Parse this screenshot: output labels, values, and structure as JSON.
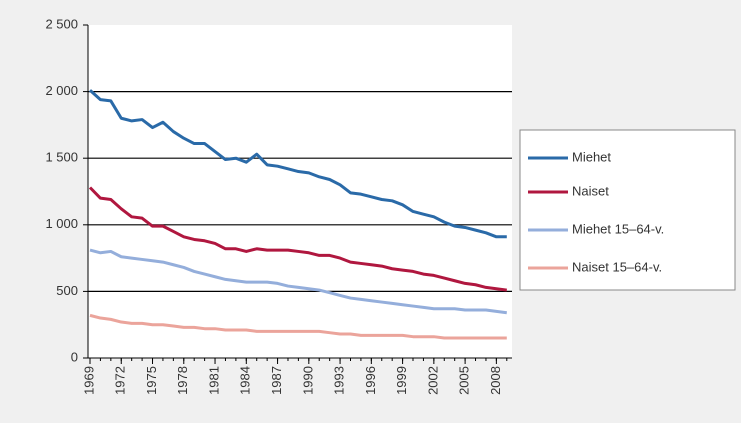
{
  "chart_data": {
    "type": "line",
    "x": [
      1969,
      1970,
      1971,
      1972,
      1973,
      1974,
      1975,
      1976,
      1977,
      1978,
      1979,
      1980,
      1981,
      1982,
      1983,
      1984,
      1985,
      1986,
      1987,
      1988,
      1989,
      1990,
      1991,
      1992,
      1993,
      1994,
      1995,
      1996,
      1997,
      1998,
      1999,
      2000,
      2001,
      2002,
      2003,
      2004,
      2005,
      2006,
      2007,
      2008,
      2009
    ],
    "series": [
      {
        "name": "Miehet",
        "color": "#2a6aa8",
        "values": [
          2010,
          1940,
          1930,
          1800,
          1780,
          1790,
          1730,
          1770,
          1700,
          1650,
          1610,
          1610,
          1550,
          1490,
          1500,
          1470,
          1530,
          1450,
          1440,
          1420,
          1400,
          1390,
          1360,
          1340,
          1300,
          1240,
          1230,
          1210,
          1190,
          1180,
          1150,
          1100,
          1080,
          1060,
          1020,
          990,
          980,
          960,
          940,
          910,
          910
        ]
      },
      {
        "name": "Naiset",
        "color": "#b0173f",
        "values": [
          1280,
          1200,
          1190,
          1120,
          1060,
          1050,
          990,
          990,
          950,
          910,
          890,
          880,
          860,
          820,
          820,
          800,
          820,
          810,
          810,
          810,
          800,
          790,
          770,
          770,
          750,
          720,
          710,
          700,
          690,
          670,
          660,
          650,
          630,
          620,
          600,
          580,
          560,
          550,
          530,
          520,
          510
        ]
      },
      {
        "name": "Miehet 15–64-v.",
        "color": "#94aedb",
        "values": [
          810,
          790,
          800,
          760,
          750,
          740,
          730,
          720,
          700,
          680,
          650,
          630,
          610,
          590,
          580,
          570,
          570,
          570,
          560,
          540,
          530,
          520,
          510,
          490,
          470,
          450,
          440,
          430,
          420,
          410,
          400,
          390,
          380,
          370,
          370,
          370,
          360,
          360,
          360,
          350,
          340
        ]
      },
      {
        "name": "Naiset 15–64-v.",
        "color": "#eba49b",
        "values": [
          320,
          300,
          290,
          270,
          260,
          260,
          250,
          250,
          240,
          230,
          230,
          220,
          220,
          210,
          210,
          210,
          200,
          200,
          200,
          200,
          200,
          200,
          200,
          190,
          180,
          180,
          170,
          170,
          170,
          170,
          170,
          160,
          160,
          160,
          150,
          150,
          150,
          150,
          150,
          150,
          150
        ]
      }
    ],
    "xlim": [
      1969,
      2009.5
    ],
    "xticks": [
      1969,
      1972,
      1975,
      1978,
      1981,
      1984,
      1987,
      1990,
      1993,
      1996,
      1999,
      2002,
      2005,
      2008
    ],
    "ylim": [
      0,
      2500
    ],
    "yticks": [
      0,
      500,
      {
        "value": 1000,
        "label": "1 000"
      },
      {
        "value": 1500,
        "label": "1 500"
      },
      {
        "value": 2000,
        "label": "2 000"
      },
      {
        "value": 2500,
        "label": "2 500"
      }
    ],
    "grid": true,
    "legend": "right"
  }
}
